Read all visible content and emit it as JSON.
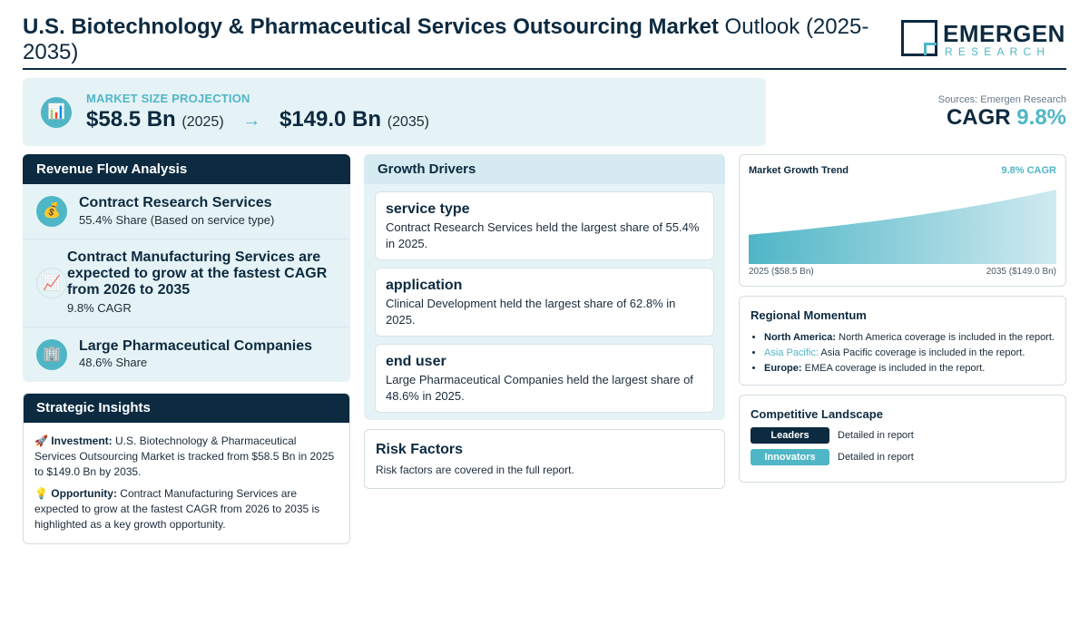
{
  "header": {
    "title_bold": "U.S. Biotechnology & Pharmaceutical Services Outsourcing Market",
    "title_rest": " Outlook (2025-2035)",
    "logo_main": "EMERGEN",
    "logo_sub": "RESEARCH"
  },
  "projection": {
    "icon": "bar-chart-icon",
    "label": "MARKET SIZE PROJECTION",
    "start_value": "$58.5 Bn",
    "start_year": "(2025)",
    "arrow": "→",
    "end_value": "$149.0 Bn",
    "end_year": "(2035)"
  },
  "sources": {
    "text": "Sources: Emergen Research",
    "cagr_label": "CAGR",
    "cagr_value": "9.8%"
  },
  "revenue_flow": {
    "title": "Revenue Flow Analysis",
    "items": [
      {
        "icon": "money-bag-icon",
        "glyph": "💰",
        "title": "Contract Research Services",
        "sub": "55.4% Share (Based on service type)"
      },
      {
        "icon": "chart-up-icon",
        "glyph": "📈",
        "title": "Contract Manufacturing Services are expected to grow at the fastest CAGR from 2026 to 2035",
        "sub": "9.8% CAGR"
      },
      {
        "icon": "building-icon",
        "glyph": "🏢",
        "title": "Large Pharmaceutical Companies",
        "sub": "48.6% Share"
      }
    ]
  },
  "strategic": {
    "title": "Strategic Insights",
    "investment_icon": "🚀",
    "investment_label": "Investment:",
    "investment_text": " U.S. Biotechnology & Pharmaceutical Services Outsourcing Market is tracked from $58.5 Bn in 2025 to $149.0 Bn by 2035.",
    "opportunity_icon": "💡",
    "opportunity_label": "Opportunity:",
    "opportunity_text": " Contract Manufacturing Services are expected to grow at the fastest CAGR from 2026 to 2035 is highlighted as a key growth opportunity."
  },
  "drivers": {
    "title": "Growth Drivers",
    "cards": [
      {
        "title": "service type",
        "text": "Contract Research Services held the largest share of 55.4% in 2025."
      },
      {
        "title": "application",
        "text": "Clinical Development held the largest share of 62.8% in 2025."
      },
      {
        "title": "end user",
        "text": "Large Pharmaceutical Companies held the largest share of 48.6% in 2025."
      }
    ]
  },
  "risk": {
    "title": "Risk Factors",
    "text": "Risk factors are covered in the full report."
  },
  "trend": {
    "title": "Market Growth Trend",
    "cagr": "9.8% CAGR",
    "start_label": "2025 ($58.5 Bn)",
    "end_label": "2035 ($149.0 Bn)",
    "colors": {
      "fill_start": "#4fb6c6",
      "fill_end": "#cfeaf0"
    }
  },
  "chart_data": {
    "type": "area",
    "x": [
      2025,
      2035
    ],
    "values": [
      58.5,
      149.0
    ]
  },
  "regional": {
    "title": "Regional Momentum",
    "items": [
      {
        "label": "North America:",
        "text": " North America coverage is included in the report."
      },
      {
        "label": "Asia Pacific:",
        "text": " Asia Pacific coverage is included in the report."
      },
      {
        "label": "Europe:",
        "text": " EMEA coverage is included in the report."
      }
    ]
  },
  "competitive": {
    "title": "Competitive Landscape",
    "rows": [
      {
        "badge": "Leaders",
        "text": "Detailed in report",
        "color": "#0c2a40"
      },
      {
        "badge": "Innovators",
        "text": "Detailed in report",
        "color": "#4fb6c6"
      }
    ]
  }
}
